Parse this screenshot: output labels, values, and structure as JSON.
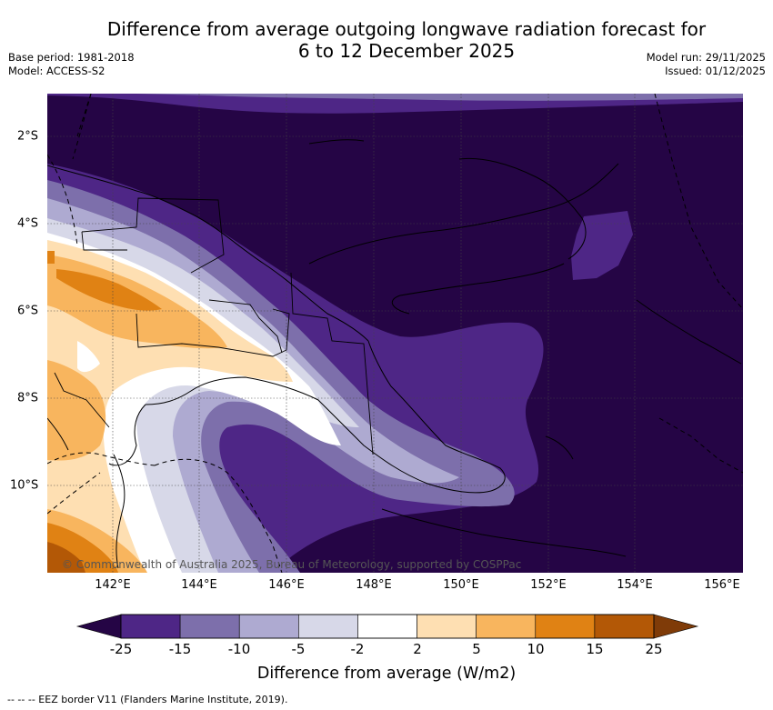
{
  "title_line1": "Difference from average outgoing longwave radiation forecast for",
  "title_line2": "6 to 12 December 2025",
  "meta_left": [
    "Base period: 1981-2018",
    "Model: ACCESS-S2"
  ],
  "meta_right": [
    "Model run: 29/11/2025",
    "Issued: 01/12/2025"
  ],
  "map": {
    "lon_labels": [
      "142°E",
      "144°E",
      "146°E",
      "148°E",
      "150°E",
      "152°E",
      "154°E",
      "156°E"
    ],
    "lat_labels": [
      "2°S",
      "4°S",
      "6°S",
      "8°S",
      "10°S"
    ],
    "credit": "© Commonwealth of Australia 2025, Bureau of Meteorology, supported by COSPPac"
  },
  "colorbar": {
    "ticks": [
      "-25",
      "-15",
      "-10",
      "-5",
      "-2",
      "2",
      "5",
      "10",
      "15",
      "25"
    ],
    "colors": [
      "#250545",
      "#4e2686",
      "#7d6fab",
      "#aeaad1",
      "#d7d8e8",
      "#ffffff",
      "#fedfb2",
      "#f8b55e",
      "#e08214",
      "#b35806",
      "#7f3b08"
    ],
    "title": "Difference from average (W/m2)"
  },
  "footer": "--  --  -- EEZ border V11 (Flanders Marine Institute, 2019)."
}
